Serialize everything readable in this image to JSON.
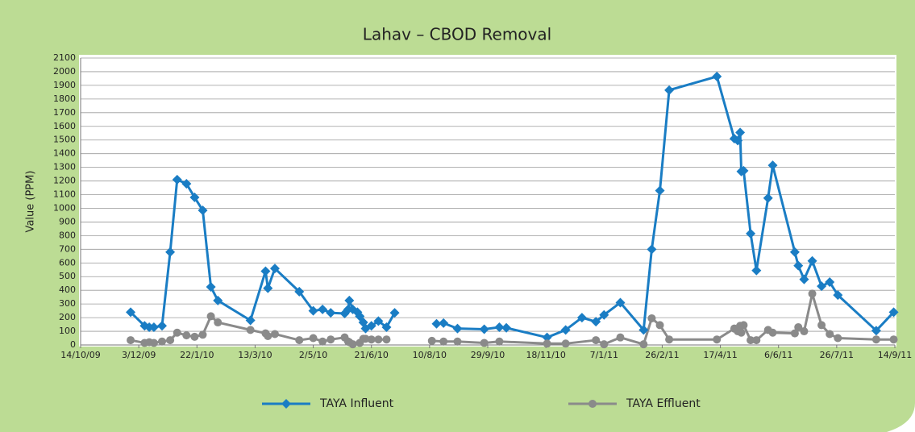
{
  "chart_data": {
    "type": "line",
    "title": "Lahav – CBOD Removal",
    "y_label": "Value (PPM)",
    "xlim": [
      "14/10/09",
      "14/9/11"
    ],
    "xticks": [
      "14/10/09",
      "3/12/09",
      "22/1/10",
      "13/3/10",
      "2/5/10",
      "21/6/10",
      "10/8/10",
      "29/9/10",
      "18/11/10",
      "7/1/11",
      "26/2/11",
      "17/4/11",
      "6/6/11",
      "26/7/11",
      "14/9/11"
    ],
    "ylim": [
      0,
      2100
    ],
    "yticks": [
      0,
      100,
      200,
      300,
      400,
      500,
      600,
      700,
      800,
      900,
      1000,
      1100,
      1200,
      1300,
      1400,
      1500,
      1600,
      1700,
      1800,
      1900,
      2000,
      2100
    ],
    "grid": true,
    "legend": "bottom",
    "series": [
      {
        "name": "TAYA Influent",
        "color": "#1a7dc4",
        "marker": "diamond",
        "x": [
          "26/11/09",
          "8/12/09",
          "12/12/09",
          "16/12/09",
          "23/12/09",
          "30/12/09",
          "5/1/10",
          "13/1/10",
          "20/1/10",
          "27/1/10",
          "3/2/10",
          "9/2/10",
          "9/3/10",
          "22/3/10",
          "24/3/10",
          "30/3/10",
          "20/4/10",
          "2/5/10",
          "10/5/10",
          "17/5/10",
          "29/5/10",
          "1/6/10",
          "2/6/10",
          "5/6/10",
          "9/6/10",
          "11/6/10",
          "14/6/10",
          "16/6/10",
          "21/6/10",
          "27/6/10",
          "4/7/10",
          "11/7/10",
          null,
          "16/8/10",
          "22/8/10",
          "3/9/10",
          "26/9/10",
          "9/10/10",
          "15/10/10",
          "19/11/10",
          "5/12/10",
          "19/12/10",
          "31/12/10",
          "7/1/11",
          "21/1/11",
          "10/2/11",
          "17/2/11",
          "24/2/11",
          "4/3/11",
          "14/4/11",
          "29/4/11",
          "2/5/11",
          "4/5/11",
          "5/5/11",
          "7/5/11",
          "13/5/11",
          "18/5/11",
          "28/5/11",
          "1/6/11",
          "20/6/11",
          "23/6/11",
          "28/6/11",
          "5/7/11",
          "13/7/11",
          "20/7/11",
          "27/7/11",
          "29/8/11",
          "13/9/11"
        ],
        "values": [
          240,
          140,
          130,
          130,
          140,
          680,
          1210,
          1180,
          1080,
          985,
          425,
          325,
          180,
          540,
          415,
          560,
          390,
          250,
          260,
          235,
          230,
          260,
          325,
          260,
          240,
          210,
          165,
          120,
          140,
          175,
          130,
          235,
          null,
          155,
          160,
          120,
          115,
          130,
          125,
          55,
          110,
          200,
          170,
          220,
          310,
          110,
          700,
          1130,
          1865,
          1965,
          1510,
          1495,
          1555,
          1270,
          1275,
          815,
          545,
          1075,
          1315,
          680,
          580,
          480,
          615,
          430,
          460,
          365,
          105,
          240
        ]
      },
      {
        "name": "TAYA Effluent",
        "color": "#8a8a8a",
        "marker": "circle",
        "x": [
          "26/11/09",
          "8/12/09",
          "12/12/09",
          "16/12/09",
          "23/12/09",
          "30/12/09",
          "5/1/10",
          "13/1/10",
          "20/1/10",
          "27/1/10",
          "3/2/10",
          "9/2/10",
          "9/3/10",
          "22/3/10",
          "24/3/10",
          "30/3/10",
          "20/4/10",
          "2/5/10",
          "10/5/10",
          "17/5/10",
          "29/5/10",
          "1/6/10",
          "2/6/10",
          "5/6/10",
          "11/6/10",
          "14/6/10",
          "16/6/10",
          "21/6/10",
          "27/6/10",
          "4/7/10",
          null,
          "12/8/10",
          "22/8/10",
          "3/9/10",
          "26/9/10",
          "9/10/10",
          "19/11/10",
          "5/12/10",
          "31/12/10",
          "7/1/11",
          "21/1/11",
          "10/2/11",
          "17/2/11",
          "24/2/11",
          "4/3/11",
          "14/4/11",
          "29/4/11",
          "2/5/11",
          "4/5/11",
          "5/5/11",
          "7/5/11",
          "13/5/11",
          "18/5/11",
          "28/5/11",
          "1/6/11",
          "20/6/11",
          "23/6/11",
          "28/6/11",
          "5/7/11",
          "13/7/11",
          "20/7/11",
          "27/7/11",
          "29/8/11",
          "13/9/11"
        ],
        "values": [
          35,
          15,
          20,
          15,
          25,
          35,
          90,
          70,
          60,
          75,
          210,
          165,
          110,
          85,
          65,
          80,
          35,
          50,
          25,
          40,
          55,
          25,
          20,
          5,
          15,
          45,
          45,
          40,
          40,
          40,
          null,
          30,
          25,
          25,
          15,
          25,
          10,
          10,
          35,
          5,
          55,
          5,
          195,
          145,
          40,
          40,
          120,
          100,
          140,
          90,
          145,
          35,
          35,
          110,
          90,
          85,
          130,
          100,
          375,
          145,
          80,
          50,
          40,
          40
        ]
      }
    ]
  }
}
